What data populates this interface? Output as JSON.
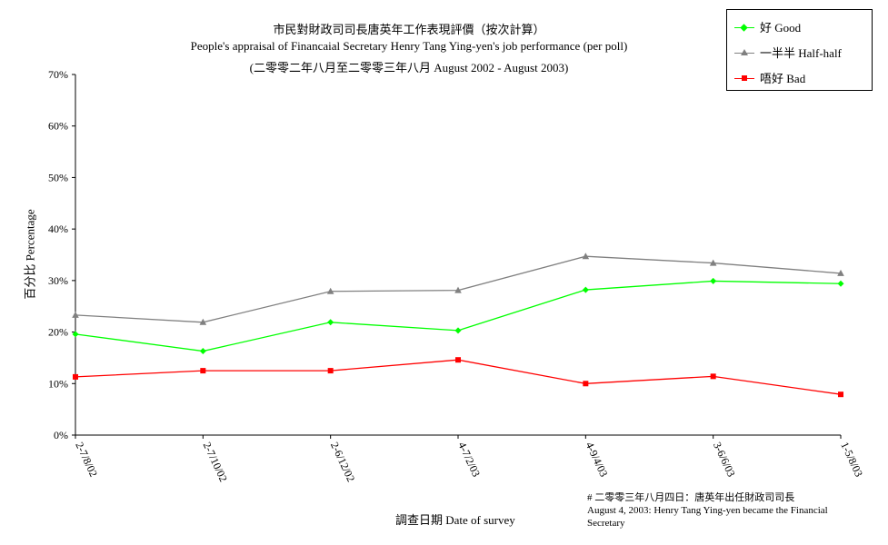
{
  "chart_data": {
    "type": "line",
    "title": "市民對財政司司長唐英年工作表現評價（按次計算）",
    "subtitle": "People's appraisal of Financaial Secretary Henry Tang Ying-yen's job performance (per poll)",
    "subtitle2": "(二零零二年八月至二零零三年八月 August 2002 - August 2003)",
    "xlabel": "調查日期 Date of survey",
    "ylabel": "百分比 Percentage",
    "ylim": [
      0,
      70
    ],
    "y_ticks": [
      "0%",
      "10%",
      "20%",
      "30%",
      "40%",
      "50%",
      "60%",
      "70%"
    ],
    "categories": [
      "2-7/8/02",
      "2-7/10/02",
      "2-6/12/02",
      "4-7/2/03",
      "4-9/4/03",
      "3-6/6/03",
      "1-5/8/03"
    ],
    "series": [
      {
        "name": "好 Good",
        "color": "#00ff00",
        "marker": "diamond",
        "values": [
          19.6,
          16.3,
          21.9,
          20.3,
          28.2,
          29.9,
          29.4
        ]
      },
      {
        "name": "一半半 Half-half",
        "color": "#808080",
        "marker": "triangle",
        "values": [
          23.3,
          21.9,
          27.9,
          28.1,
          34.7,
          33.4,
          31.4
        ]
      },
      {
        "name": "唔好 Bad",
        "color": "#ff0000",
        "marker": "square",
        "values": [
          11.3,
          12.5,
          12.5,
          14.6,
          10.0,
          11.4,
          7.9
        ]
      }
    ],
    "legend_position": "top-right",
    "grid": false,
    "note": {
      "line1": "# 二零零三年八月四日：唐英年出任財政司司長",
      "line2": "August 4, 2003: Henry Tang Ying-yen became the Financial Secretary"
    }
  }
}
